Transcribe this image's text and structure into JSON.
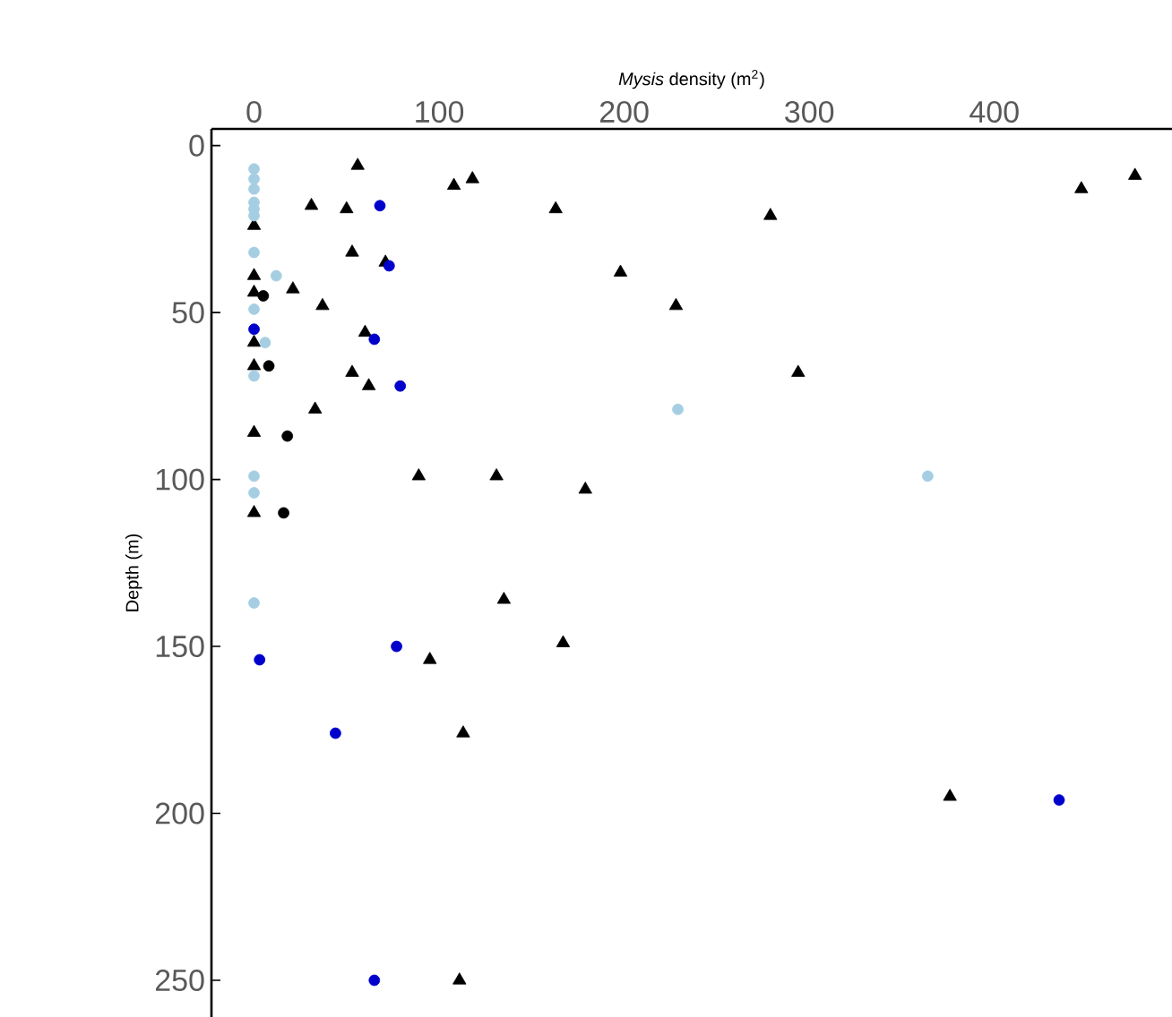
{
  "chart_data": {
    "type": "scatter",
    "xlabel": "*Mysis* density  (m$^{2}$)",
    "ylabel": "Depth (m)",
    "xlim": [
      -23,
      496
    ],
    "ylim": [
      261,
      -5
    ],
    "xticks": [
      0,
      100,
      200,
      300,
      400
    ],
    "yticks": [
      0,
      50,
      100,
      150,
      200,
      250
    ],
    "series": [
      {
        "color": "#000000",
        "marker": "triangle",
        "x": [
          56,
          108,
          118,
          476,
          447,
          31,
          50,
          163,
          279,
          0,
          53,
          71,
          198,
          0,
          0,
          21,
          37,
          228,
          0,
          60,
          0,
          53,
          62,
          294,
          33,
          0,
          89,
          131,
          179,
          0,
          135,
          167,
          95,
          113,
          376,
          111
        ],
        "values": [
          6,
          12,
          10,
          9,
          13,
          18,
          19,
          19,
          21,
          24,
          32,
          35,
          38,
          39,
          44,
          43,
          48,
          48,
          59,
          56,
          66,
          68,
          72,
          68,
          79,
          86,
          99,
          99,
          103,
          110,
          136,
          149,
          154,
          176,
          195,
          250
        ]
      },
      {
        "color": "#000000",
        "marker": "circle",
        "x": [
          5,
          8,
          18,
          16
        ],
        "values": [
          45,
          66,
          87,
          110
        ]
      },
      {
        "color": "#0000cc",
        "marker": "circle",
        "x": [
          68,
          73,
          0,
          65,
          79,
          77,
          3,
          44,
          435,
          65
        ],
        "values": [
          18,
          36,
          55,
          58,
          72,
          150,
          154,
          176,
          196,
          250
        ]
      },
      {
        "color": "#a6cee3",
        "marker": "circle",
        "x": [
          0,
          0,
          0,
          0,
          0,
          0,
          0,
          12,
          0,
          6,
          0,
          229,
          364,
          0,
          0,
          0
        ],
        "values": [
          7,
          10,
          13,
          17,
          19,
          21,
          32,
          39,
          49,
          59,
          69,
          79,
          99,
          99,
          104,
          137
        ]
      }
    ]
  }
}
